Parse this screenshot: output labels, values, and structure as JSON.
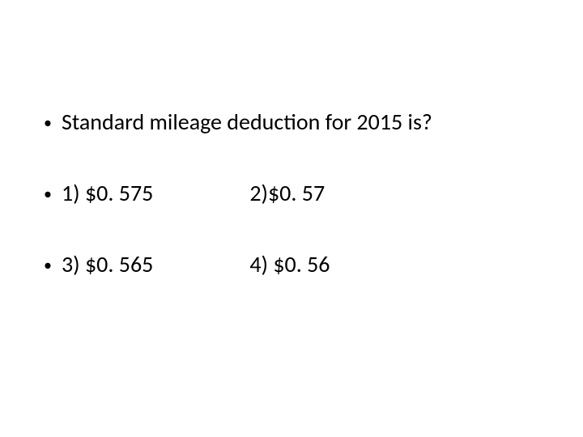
{
  "slide": {
    "question": "Standard mileage deduction for 2015 is?",
    "options": {
      "opt1": "1) $0. 575",
      "opt2": "2)$0. 57",
      "opt3": "3) $0. 565",
      "opt4": "4) $0. 56"
    },
    "style": {
      "background_color": "#ffffff",
      "text_color": "#000000",
      "font_family": "Calibri",
      "question_fontsize": 28,
      "option_fontsize": 28,
      "bullet_char": "•"
    }
  }
}
